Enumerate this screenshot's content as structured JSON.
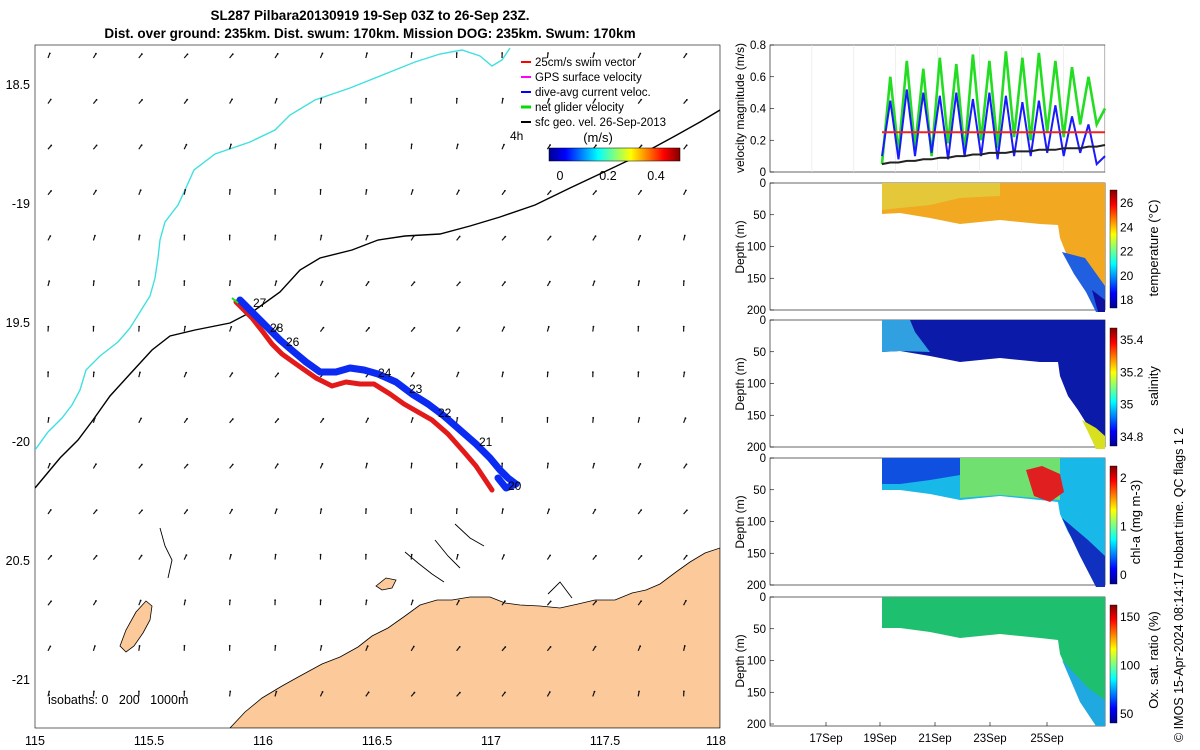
{
  "header": {
    "title_line1": "SL287 Pilbara20130919 19-Sep 03Z to 26-Sep 23Z.",
    "title_line2": "Dist. over ground: 235km. Dist. swum: 170km. Mission DOG: 235km. Swum: 170km"
  },
  "credit": "© IMOS 15-Apr-2024 08:14:17 Hobart time. QC flags 1  2",
  "map": {
    "lon_ticks": [
      "115",
      "115.5",
      "116",
      "116.5",
      "117",
      "117.5",
      "118"
    ],
    "lat_ticks": [
      "18.5",
      "-19",
      "19.5",
      "-20",
      "20.5",
      "-21"
    ],
    "legend": [
      {
        "label": "25cm/s swim vector",
        "color": "#ff0000"
      },
      {
        "label": "GPS surface velocity",
        "color": "#ff00ff"
      },
      {
        "label": "dive-avg current veloc.",
        "color": "#0000ff"
      },
      {
        "label": "net glider velocity",
        "color": "#00dd00"
      },
      {
        "label": "sfc geo. vel. 26-Sep-2013",
        "color": "#000000"
      }
    ],
    "time_step_label": "4h",
    "colorbar_label": "(m/s)",
    "colorbar_ticks": [
      "0",
      "0.2",
      "0.4"
    ],
    "day_labels": [
      "27",
      "28",
      "26",
      "24",
      "23",
      "22",
      "21",
      "20"
    ],
    "isobaths_label": "isobaths: 0   200   1000m",
    "land_color": "#fbc99a",
    "isobath_200_color": "#000000",
    "isobath_1000_color": "#40e0e0"
  },
  "chart_data": [
    {
      "type": "line",
      "title": "",
      "ylabel": "velocity magnitude (m/s)",
      "ylim": [
        0,
        0.8
      ],
      "yticks": [
        "0",
        "0.2",
        "0.4",
        "0.6",
        "0.8"
      ],
      "series": [
        {
          "name": "net glider velocity",
          "color": "#22dd22",
          "values": [
            0.05,
            0.6,
            0.12,
            0.7,
            0.15,
            0.65,
            0.1,
            0.72,
            0.18,
            0.68,
            0.12,
            0.74,
            0.2,
            0.7,
            0.15,
            0.76,
            0.22,
            0.72,
            0.2,
            0.75,
            0.25,
            0.7,
            0.22,
            0.66,
            0.3,
            0.6,
            0.3,
            0.4
          ]
        },
        {
          "name": "dive-avg current veloc.",
          "color": "#1a1aff",
          "values": [
            0.1,
            0.45,
            0.08,
            0.52,
            0.1,
            0.5,
            0.12,
            0.48,
            0.08,
            0.5,
            0.1,
            0.46,
            0.1,
            0.5,
            0.08,
            0.48,
            0.1,
            0.44,
            0.1,
            0.45,
            0.12,
            0.42,
            0.1,
            0.35,
            0.12,
            0.3,
            0.05,
            0.1
          ]
        },
        {
          "name": "25cm/s swim vector",
          "color": "#ee2222",
          "values": [
            0.25,
            0.25,
            0.25,
            0.25,
            0.25,
            0.25,
            0.25,
            0.25,
            0.25,
            0.25,
            0.25,
            0.25,
            0.25,
            0.25,
            0.25,
            0.25,
            0.25,
            0.25,
            0.25,
            0.25,
            0.25,
            0.25,
            0.25,
            0.25,
            0.25,
            0.25,
            0.25,
            0.25
          ]
        },
        {
          "name": "sfc geo. vel. 26-Sep-2013",
          "color": "#222222",
          "values": [
            0.05,
            0.06,
            0.06,
            0.07,
            0.07,
            0.08,
            0.08,
            0.09,
            0.09,
            0.1,
            0.1,
            0.11,
            0.11,
            0.12,
            0.12,
            0.12,
            0.13,
            0.13,
            0.13,
            0.14,
            0.14,
            0.14,
            0.15,
            0.15,
            0.15,
            0.16,
            0.16,
            0.17
          ]
        }
      ]
    },
    {
      "type": "heatmap",
      "title": "",
      "ylabel": "Depth (m)",
      "colorbar_label": "temperature (°C)",
      "yticks": [
        "0",
        "50",
        "100",
        "150",
        "200"
      ],
      "colorbar_ticks": [
        "26",
        "24",
        "22",
        "20",
        "18"
      ],
      "clim": [
        17,
        27
      ]
    },
    {
      "type": "heatmap",
      "title": "",
      "ylabel": "Depth (m)",
      "colorbar_label": "salinity",
      "yticks": [
        "0",
        "50",
        "100",
        "150",
        "200"
      ],
      "colorbar_ticks": [
        "35.4",
        "35.2",
        "35",
        "34.8"
      ],
      "clim": [
        34.7,
        35.5
      ]
    },
    {
      "type": "heatmap",
      "title": "",
      "ylabel": "Depth (m)",
      "colorbar_label": "chl-a (mg m-3)",
      "yticks": [
        "0",
        "50",
        "100",
        "150",
        "200"
      ],
      "colorbar_ticks": [
        "2",
        "1",
        "0"
      ],
      "clim": [
        0,
        2
      ]
    },
    {
      "type": "heatmap",
      "title": "",
      "ylabel": "Depth (m)",
      "colorbar_label": "Ox. sat. ratio (%)",
      "yticks": [
        "0",
        "50",
        "100",
        "150",
        "200"
      ],
      "colorbar_ticks": [
        "150",
        "100",
        "50"
      ],
      "clim": [
        25,
        175
      ],
      "xticks": [
        "17Sep",
        "19Sep",
        "21Sep",
        "23Sep",
        "25Sep"
      ]
    }
  ]
}
